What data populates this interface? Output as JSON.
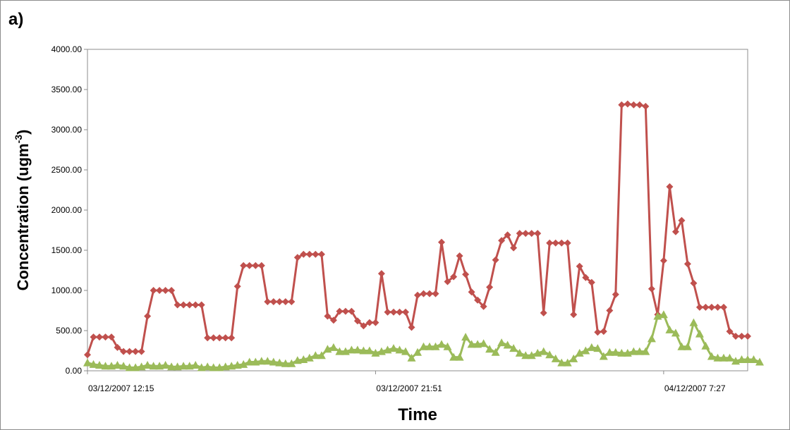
{
  "panel_label": "a)",
  "chart_data": {
    "type": "line",
    "title": "",
    "xlabel": "Time",
    "ylabel": "Concentration (ugm",
    "ylabel_superscript": "-3",
    "ylabel_close": ")",
    "ylim": [
      0,
      4000
    ],
    "yticks": [
      "0.00",
      "500.00",
      "1000.00",
      "1500.00",
      "2000.00",
      "2500.00",
      "3000.00",
      "3500.00",
      "4000.00"
    ],
    "xtick_labels": [
      {
        "label": "03/12/2007 12:15",
        "index": 0
      },
      {
        "label": "03/12/2007 21:51",
        "index": 48
      },
      {
        "label": "04/12/2007 7:27",
        "index": 96
      }
    ],
    "grid": false,
    "legend": "none",
    "series": [
      {
        "color": "#c0504d",
        "marker": "diamond",
        "values": [
          200,
          420,
          420,
          420,
          420,
          290,
          240,
          240,
          240,
          240,
          680,
          1000,
          1000,
          1000,
          1000,
          820,
          820,
          820,
          820,
          820,
          410,
          410,
          410,
          410,
          410,
          1050,
          1310,
          1310,
          1310,
          1310,
          860,
          860,
          860,
          860,
          860,
          1410,
          1450,
          1450,
          1450,
          1450,
          680,
          630,
          740,
          740,
          740,
          620,
          560,
          600,
          600,
          1210,
          730,
          730,
          730,
          730,
          540,
          940,
          960,
          960,
          960,
          1600,
          1110,
          1170,
          1430,
          1200,
          980,
          880,
          800,
          1040,
          1380,
          1620,
          1690,
          1530,
          1710,
          1710,
          1710,
          1710,
          720,
          1590,
          1590,
          1590,
          1590,
          700,
          1300,
          1160,
          1100,
          480,
          490,
          750,
          950,
          3310,
          3320,
          3310,
          3310,
          3290,
          1020,
          700,
          1370,
          2290,
          1730,
          1870,
          1330,
          1090,
          790,
          790,
          790,
          790,
          790,
          490,
          430,
          430,
          430
        ]
      },
      {
        "color": "#9bbb59",
        "marker": "triangle",
        "values": [
          100,
          80,
          70,
          60,
          60,
          70,
          60,
          40,
          40,
          50,
          70,
          60,
          60,
          70,
          50,
          50,
          60,
          60,
          70,
          40,
          50,
          40,
          40,
          50,
          60,
          70,
          80,
          110,
          110,
          120,
          120,
          110,
          100,
          90,
          90,
          130,
          140,
          160,
          190,
          190,
          270,
          290,
          240,
          240,
          260,
          260,
          250,
          250,
          220,
          240,
          260,
          280,
          260,
          240,
          160,
          230,
          300,
          300,
          300,
          330,
          300,
          170,
          170,
          420,
          330,
          330,
          340,
          270,
          230,
          350,
          320,
          280,
          220,
          190,
          190,
          220,
          240,
          200,
          150,
          100,
          100,
          150,
          220,
          250,
          290,
          280,
          180,
          230,
          230,
          220,
          220,
          240,
          240,
          240,
          400,
          680,
          700,
          510,
          470,
          300,
          300,
          600,
          460,
          310,
          180,
          160,
          160,
          160,
          120,
          140,
          140,
          140,
          110
        ]
      }
    ]
  }
}
